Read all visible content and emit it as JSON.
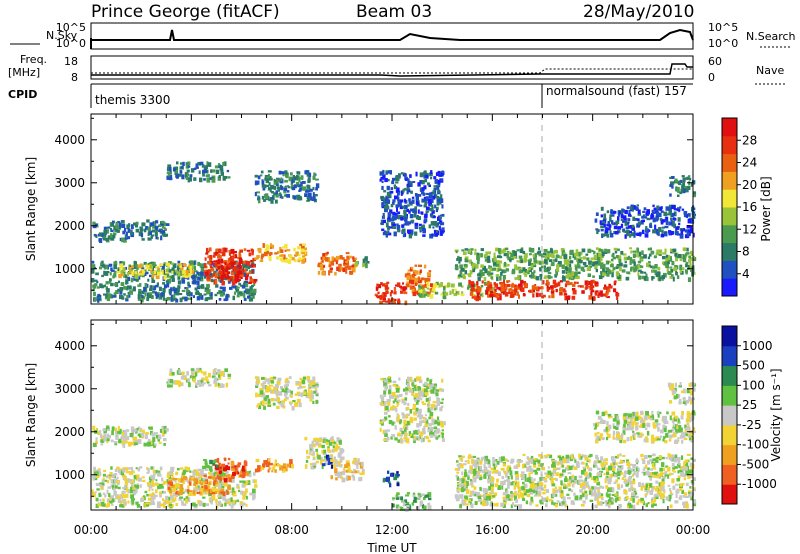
{
  "header": {
    "station": "Prince George (fitACF)",
    "beam": "Beam 03",
    "date": "28/May/2010"
  },
  "noise_panel": {
    "left_label": "N.Sky",
    "right_label": "N.Search",
    "ticks": [
      "10^5",
      "10^0"
    ]
  },
  "freq_panel": {
    "left_label_line1": "Freq.",
    "left_label_line2": "[MHz]",
    "left_ticks": [
      "18",
      "8"
    ],
    "right_label": "Nave",
    "right_ticks": [
      "60",
      "0"
    ]
  },
  "cpid_panel": {
    "label": "CPID",
    "modes": [
      {
        "name": "themis 3300",
        "start_hour": 0
      },
      {
        "name": "normalsound (fast) 157",
        "start_hour": 18
      }
    ]
  },
  "colors": {
    "axis": "#000000",
    "divider": "#aaaaaa"
  },
  "chart_data": [
    {
      "type": "heatmap",
      "name": "power",
      "ylabel": "Slant Range [km]",
      "ylim": [
        180,
        4600
      ],
      "yticks": [
        1000,
        2000,
        3000,
        4000
      ],
      "xlabel": "Time UT",
      "xlim": [
        0,
        24
      ],
      "xtick_labels": [
        "00:00",
        "04:00",
        "08:00",
        "12:00",
        "16:00",
        "20:00",
        "00:00"
      ],
      "colorbar": {
        "label": "Power [dB]",
        "ticks": [
          "4",
          "8",
          "12",
          "16",
          "20",
          "24",
          "28"
        ],
        "colors": [
          "#1a1aff",
          "#1f4fc0",
          "#2a7a66",
          "#4a9a50",
          "#99c43a",
          "#f2e636",
          "#f0a020",
          "#e86010",
          "#e83010",
          "#e01010"
        ]
      },
      "blobs": [
        {
          "x0": 0.0,
          "x1": 6.5,
          "y0": 300,
          "y1": 1200,
          "level": 2
        },
        {
          "x0": 0.0,
          "x1": 3.0,
          "y0": 1700,
          "y1": 2150,
          "level": 2
        },
        {
          "x0": 1.0,
          "x1": 4.0,
          "y0": 850,
          "y1": 1150,
          "level": 5
        },
        {
          "x0": 4.5,
          "x1": 6.5,
          "y0": 700,
          "y1": 1500,
          "level": 8
        },
        {
          "x0": 5.0,
          "x1": 6.0,
          "y0": 800,
          "y1": 1200,
          "level": 9
        },
        {
          "x0": 6.5,
          "x1": 8.5,
          "y0": 1200,
          "y1": 1600,
          "level": 6
        },
        {
          "x0": 9.0,
          "x1": 10.5,
          "y0": 900,
          "y1": 1400,
          "level": 7
        },
        {
          "x0": 10.5,
          "x1": 11.0,
          "y0": 1100,
          "y1": 1300,
          "level": 3
        },
        {
          "x0": 11.3,
          "x1": 12.5,
          "y0": 250,
          "y1": 700,
          "level": 8
        },
        {
          "x0": 12.5,
          "x1": 13.6,
          "y0": 450,
          "y1": 1100,
          "level": 7
        },
        {
          "x0": 13.0,
          "x1": 16.0,
          "y0": 400,
          "y1": 700,
          "level": 4
        },
        {
          "x0": 15.0,
          "x1": 21.0,
          "y0": 350,
          "y1": 750,
          "level": 8
        },
        {
          "x0": 14.5,
          "x1": 24.0,
          "y0": 800,
          "y1": 1500,
          "level": 3
        },
        {
          "x0": 3.0,
          "x1": 5.5,
          "y0": 3100,
          "y1": 3500,
          "level": 2
        },
        {
          "x0": 6.5,
          "x1": 9.0,
          "y0": 2600,
          "y1": 3300,
          "level": 2
        },
        {
          "x0": 11.5,
          "x1": 14.0,
          "y0": 1800,
          "y1": 3300,
          "level": 1
        },
        {
          "x0": 20.0,
          "x1": 24.0,
          "y0": 1800,
          "y1": 2500,
          "level": 1
        },
        {
          "x0": 23.0,
          "x1": 24.0,
          "y0": 2700,
          "y1": 3200,
          "level": 2
        }
      ]
    },
    {
      "type": "heatmap",
      "name": "velocity",
      "ylabel": "Slant Range [km]",
      "ylim": [
        180,
        4600
      ],
      "yticks": [
        1000,
        2000,
        3000,
        4000
      ],
      "xlabel": "Time UT",
      "xlim": [
        0,
        24
      ],
      "xtick_labels": [
        "00:00",
        "04:00",
        "08:00",
        "12:00",
        "16:00",
        "20:00",
        "00:00"
      ],
      "colorbar": {
        "label": "Velocity [m s⁻¹]",
        "ticks": [
          "-1000",
          "-500",
          "-100",
          "-25",
          "25",
          "100",
          "500",
          "1000"
        ],
        "colors": [
          "#e01010",
          "#f06020",
          "#f0a020",
          "#f2d336",
          "#c8c8c8",
          "#60c040",
          "#2a8a50",
          "#1a40c0",
          "#0a10a0"
        ]
      },
      "blobs": [
        {
          "x0": 0.0,
          "x1": 6.5,
          "y0": 300,
          "y1": 1200,
          "level": 4
        },
        {
          "x0": 0.0,
          "x1": 3.0,
          "y0": 1700,
          "y1": 2150,
          "level": 4
        },
        {
          "x0": 3.0,
          "x1": 5.5,
          "y0": 3100,
          "y1": 3500,
          "level": 4
        },
        {
          "x0": 6.5,
          "x1": 9.0,
          "y0": 2600,
          "y1": 3300,
          "level": 4
        },
        {
          "x0": 3.0,
          "x1": 5.5,
          "y0": 600,
          "y1": 1000,
          "level": 2
        },
        {
          "x0": 4.8,
          "x1": 6.2,
          "y0": 900,
          "y1": 1400,
          "level": 1
        },
        {
          "x0": 4.4,
          "x1": 5.0,
          "y0": 1200,
          "y1": 1400,
          "level": 5
        },
        {
          "x0": 6.5,
          "x1": 8.0,
          "y0": 1100,
          "y1": 1400,
          "level": 2
        },
        {
          "x0": 8.5,
          "x1": 10.0,
          "y0": 1200,
          "y1": 1900,
          "level": 4
        },
        {
          "x0": 9.2,
          "x1": 9.6,
          "y0": 1200,
          "y1": 1500,
          "level": 7
        },
        {
          "x0": 9.5,
          "x1": 10.8,
          "y0": 900,
          "y1": 1400,
          "level": 3
        },
        {
          "x0": 12.0,
          "x1": 13.5,
          "y0": 200,
          "y1": 600,
          "level": 5
        },
        {
          "x0": 11.6,
          "x1": 12.2,
          "y0": 800,
          "y1": 1100,
          "level": 7
        },
        {
          "x0": 11.5,
          "x1": 14.0,
          "y0": 1800,
          "y1": 3300,
          "level": 4
        },
        {
          "x0": 14.5,
          "x1": 24.0,
          "y0": 300,
          "y1": 1500,
          "level": 4
        },
        {
          "x0": 20.0,
          "x1": 24.0,
          "y0": 1800,
          "y1": 2500,
          "level": 4
        },
        {
          "x0": 23.0,
          "x1": 24.0,
          "y0": 2700,
          "y1": 3200,
          "level": 4
        }
      ]
    }
  ]
}
